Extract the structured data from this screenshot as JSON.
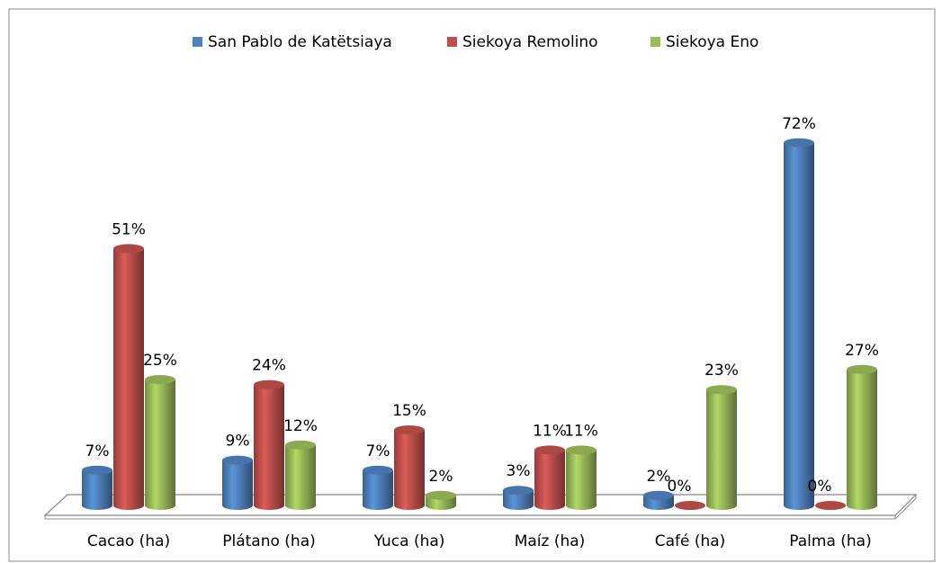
{
  "chart_data": {
    "type": "bar3d",
    "categories": [
      "Cacao (ha)",
      "Plátano (ha)",
      "Yuca (ha)",
      "Maíz (ha)",
      "Café (ha)",
      "Palma (ha)"
    ],
    "series": [
      {
        "name": "San Pablo de Katëtsiaya",
        "color": "#4f81bd",
        "values": [
          7,
          9,
          7,
          3,
          2,
          72
        ],
        "value_labels": [
          "7%",
          "9%",
          "7%",
          "3%",
          "2%",
          "72%"
        ]
      },
      {
        "name": "Siekoya Remolino",
        "color": "#c0504d",
        "values": [
          51,
          24,
          15,
          11,
          0,
          0
        ],
        "value_labels": [
          "51%",
          "24%",
          "15%",
          "11%",
          "0%",
          "0%"
        ]
      },
      {
        "name": "Siekoya Eno",
        "color": "#9bbb59",
        "values": [
          25,
          12,
          2,
          11,
          23,
          27
        ],
        "value_labels": [
          "25%",
          "12%",
          "2%",
          "11%",
          "23%",
          "27%"
        ]
      }
    ],
    "legend": "top"
  }
}
